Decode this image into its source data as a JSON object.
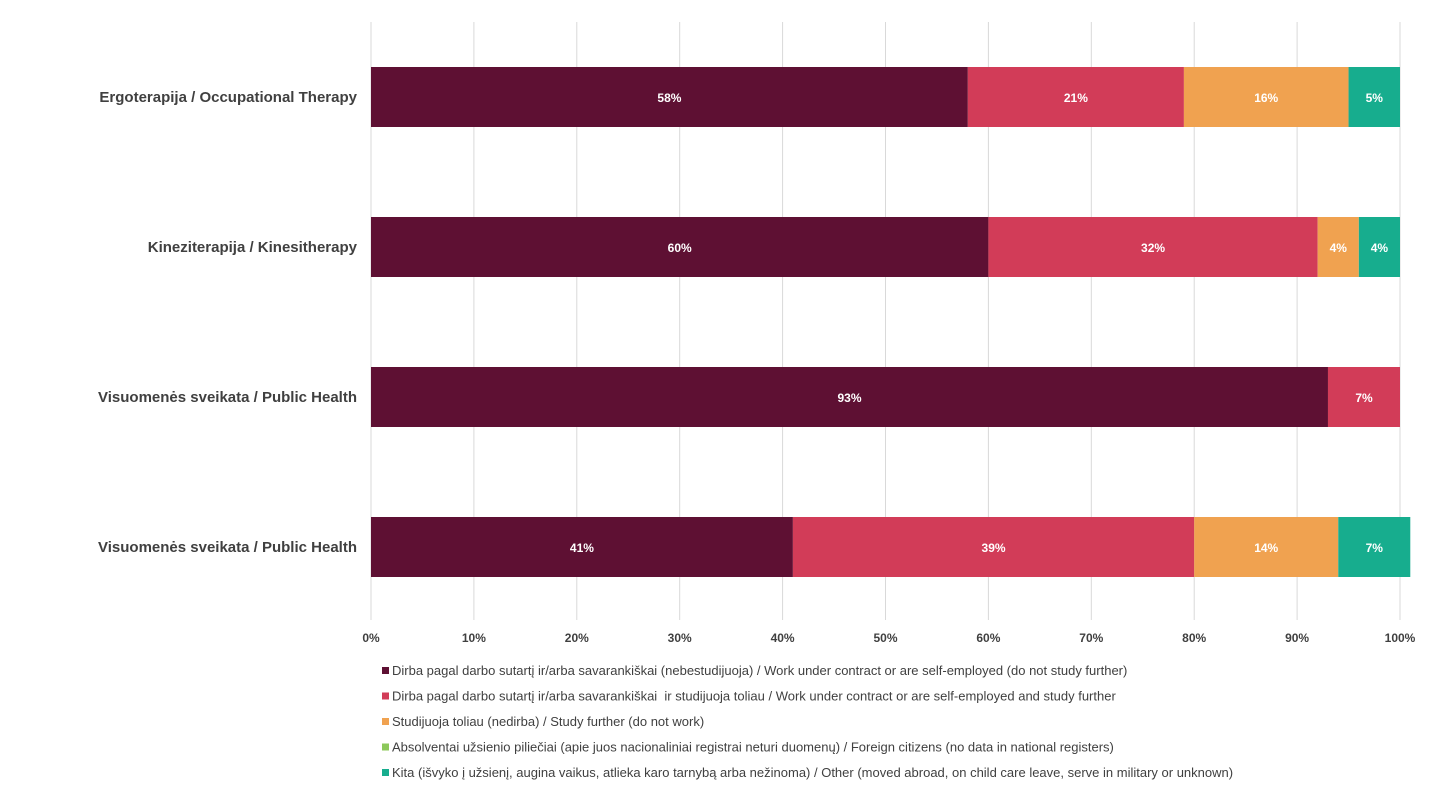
{
  "chart_data": {
    "type": "bar",
    "orientation": "horizontal",
    "stacked": true,
    "categories": [
      "Ergoterapija / Occupational Therapy",
      "Kineziterapija / Kinesitherapy",
      "Visuomenės sveikata / Public Health",
      "Visuomenės sveikata / Public Health"
    ],
    "series": [
      {
        "name": "Dirba pagal darbo sutartį ir/arba savarankiškai (nebestudijuoja) / Work under contract or are self-employed (do not study further)",
        "color": "#5e1033",
        "values": [
          58,
          60,
          93,
          41
        ],
        "labels": [
          "58%",
          "60%",
          "93%",
          "41%"
        ]
      },
      {
        "name": "Dirba pagal darbo sutartį ir/arba savarankiškai  ir studijuoja toliau / Work under contract or are self-employed and study further",
        "color": "#d23c58",
        "values": [
          21,
          32,
          7,
          39
        ],
        "labels": [
          "21%",
          "32%",
          "7%",
          "39%"
        ]
      },
      {
        "name": "Studijuoja toliau (nedirba) / Study further (do not work)",
        "color": "#f0a250",
        "values": [
          16,
          4,
          0,
          14
        ],
        "labels": [
          "16%",
          "4%",
          "",
          "14%"
        ]
      },
      {
        "name": "Absolventai užsienio piliečiai (apie juos nacionaliniai registrai neturi duomenų) / Foreign citizens (no data in national registers)",
        "color": "#8cc85a",
        "values": [
          0,
          0,
          0,
          0
        ],
        "labels": [
          "",
          "",
          "",
          ""
        ]
      },
      {
        "name": "Kita (išvyko į užsienį, augina vaikus, atlieka karo tarnybą arba nežinoma) / Other (moved abroad, on child care leave, serve in military or unknown)",
        "color": "#17ad8e",
        "values": [
          5,
          4,
          0,
          7
        ],
        "labels": [
          "5%",
          "4%",
          "",
          "7%"
        ]
      }
    ],
    "xlim": [
      0,
      100
    ],
    "xticks": [
      "0%",
      "10%",
      "20%",
      "30%",
      "40%",
      "50%",
      "60%",
      "70%",
      "80%",
      "90%",
      "100%"
    ],
    "title": "",
    "xlabel": "",
    "ylabel": "",
    "grid": "vertical",
    "legend": "bottom"
  }
}
